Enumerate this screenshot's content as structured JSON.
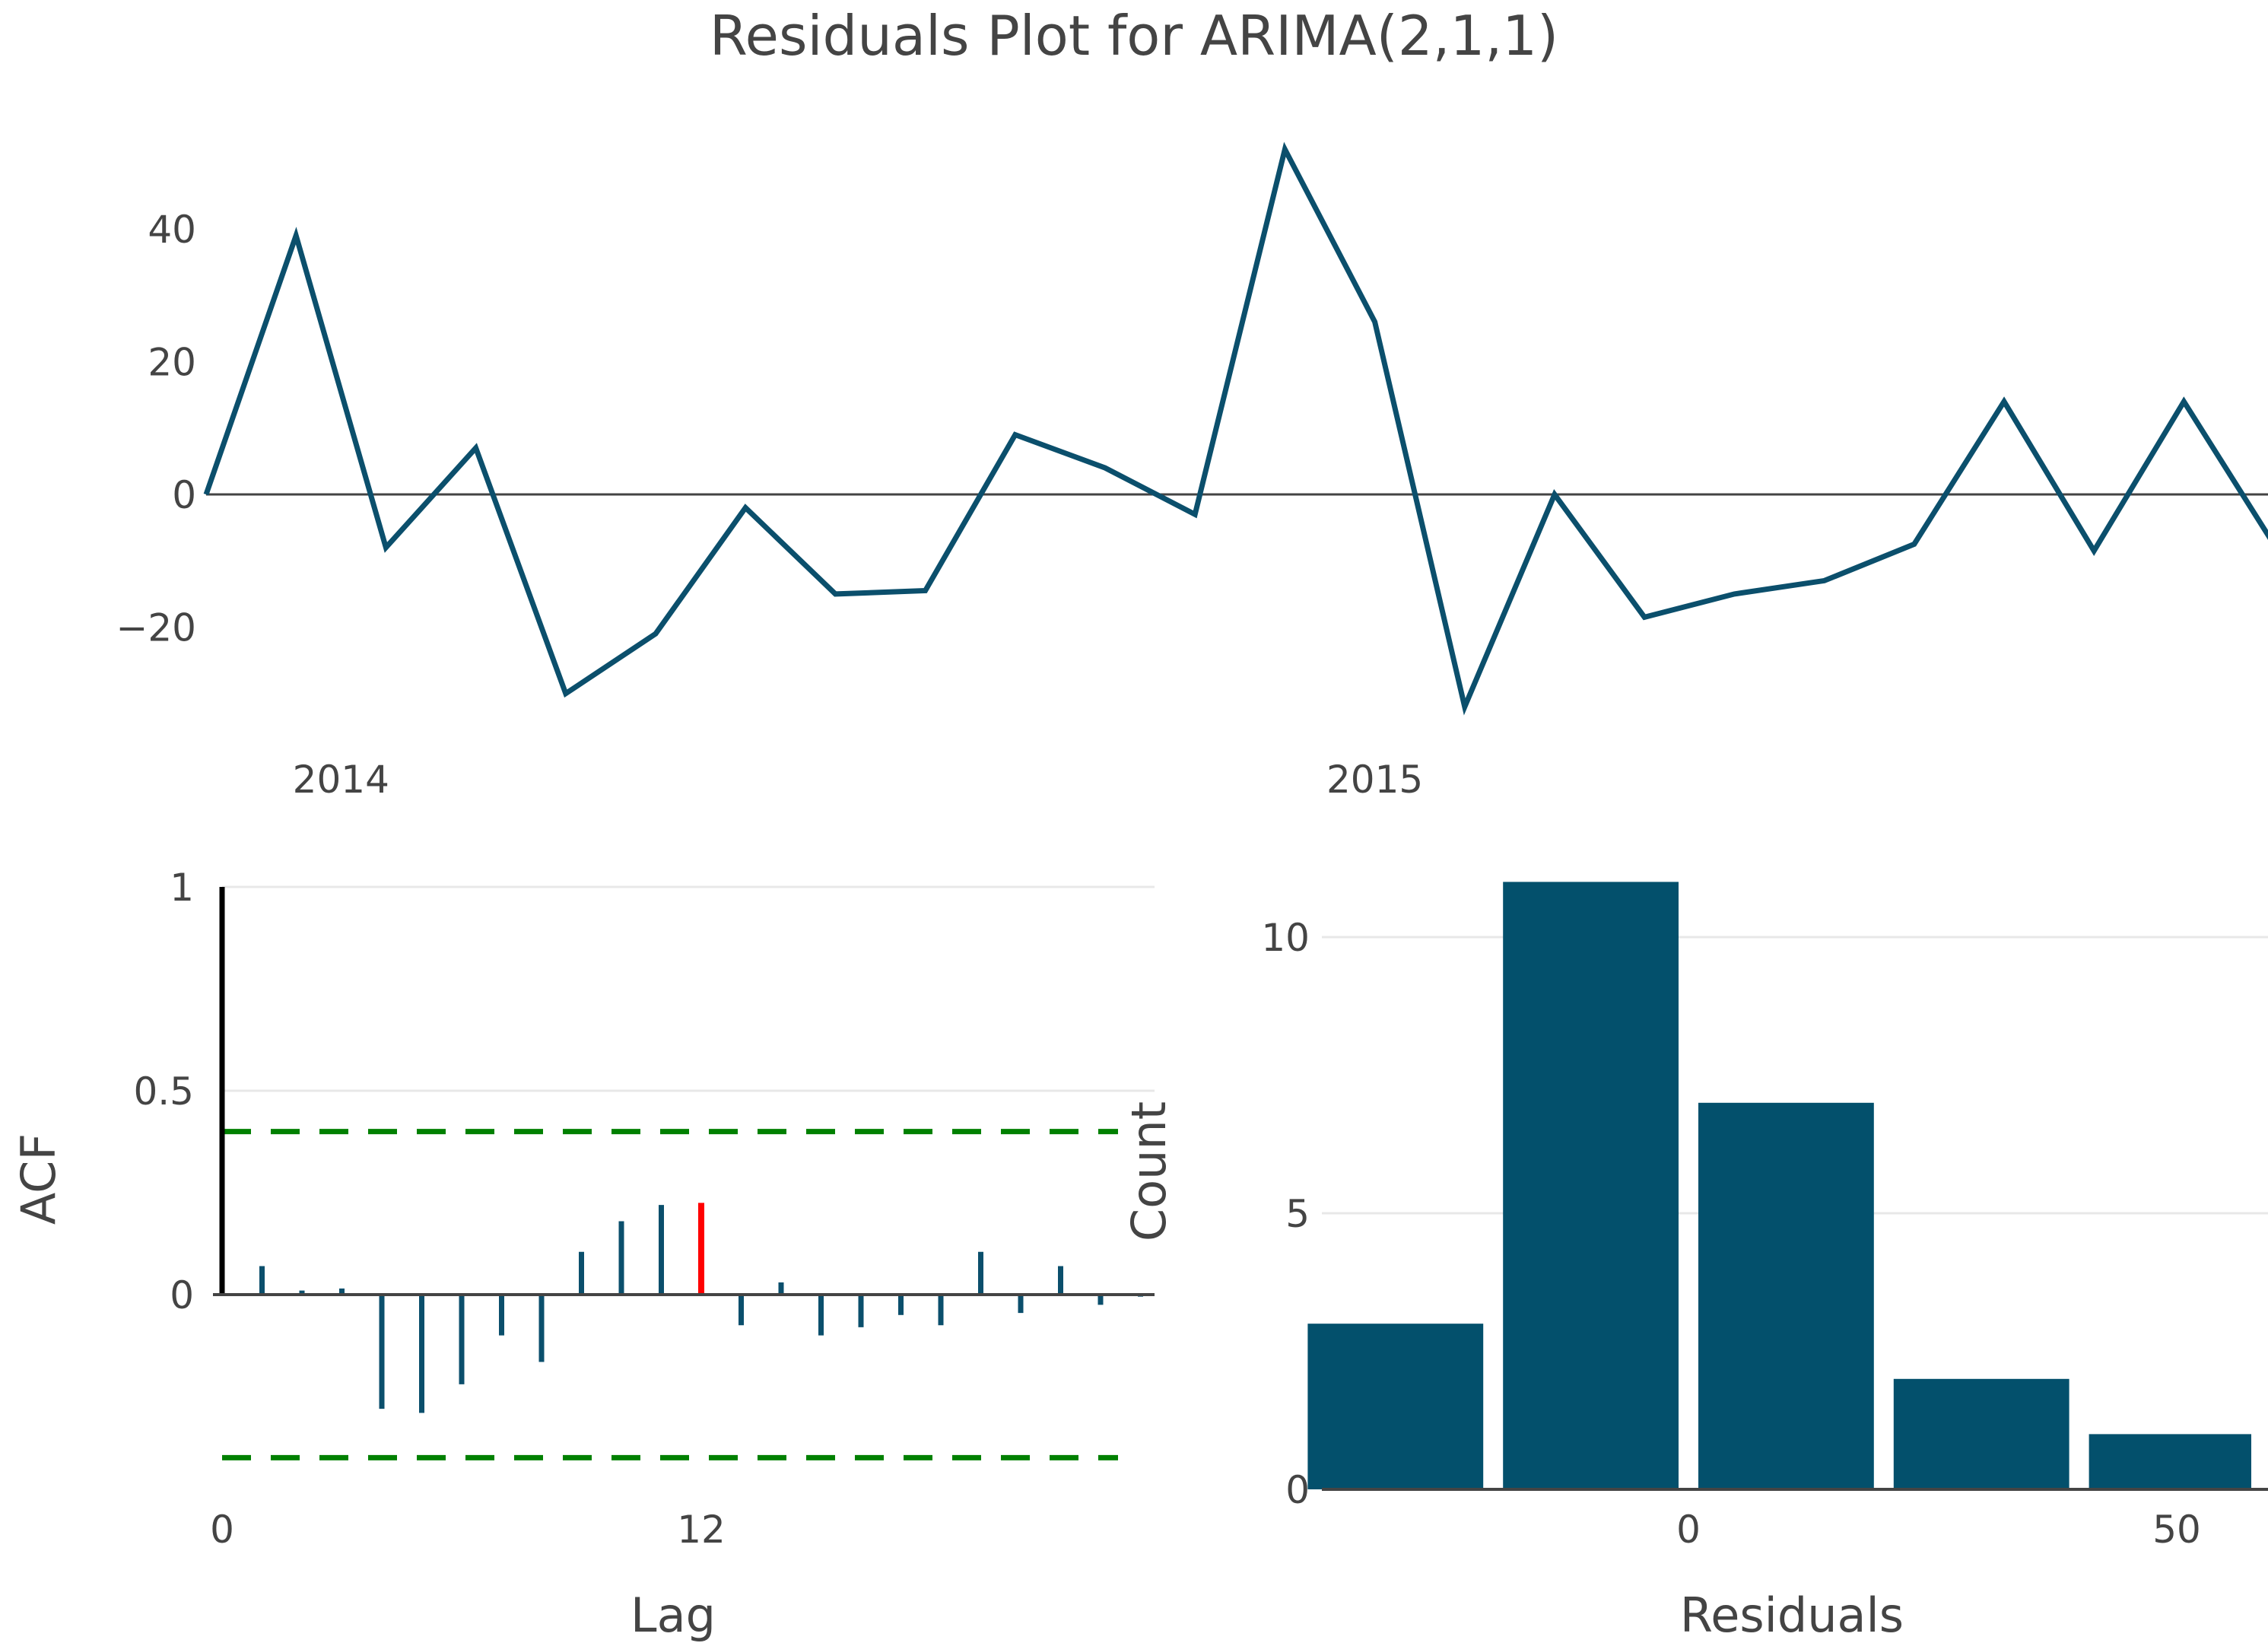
{
  "title": "Residuals Plot for ARIMA(2,1,1)",
  "colors": {
    "series": "#0b4f6c",
    "bar": "#03506c",
    "highlight": "#ff0000",
    "lag0": "#000000",
    "confidence": "#008000",
    "grid": "#e8e8e8",
    "zero": "#444444"
  },
  "chart_data": [
    {
      "id": "residuals",
      "type": "line",
      "title": "Residuals Plot for ARIMA(2,1,1)",
      "xlabel": "",
      "ylabel": "",
      "x_ticks": [
        "2014",
        "2015"
      ],
      "x_tick_positions": [
        1.5,
        13.0
      ],
      "x_range": [
        -0.5,
        23.7
      ],
      "ylim": [
        -35,
        55
      ],
      "y_ticks": [
        40,
        20,
        0,
        -20
      ],
      "y_tick_labels": [
        "40",
        "20",
        "0",
        "−20"
      ],
      "values": [
        0,
        39,
        -8,
        7,
        -30,
        -21,
        -2,
        -15,
        -14.5,
        9,
        4,
        -3,
        52,
        26,
        -32,
        0,
        -18.5,
        -15,
        -13,
        -7.5,
        14,
        -8.5,
        14,
        -7.5
      ],
      "zero_line": true
    },
    {
      "id": "acf",
      "type": "bar",
      "subtype": "stem",
      "xlabel": "Lag",
      "ylabel": "ACF",
      "x_ticks": [
        0,
        12
      ],
      "x_tick_labels": [
        "0",
        "12"
      ],
      "xlim": [
        0,
        23.3
      ],
      "ylim": [
        -0.48,
        1.0
      ],
      "y_ticks": [
        1,
        0.5,
        0
      ],
      "y_tick_labels": [
        "1",
        "0.5",
        "0"
      ],
      "lags": [
        0,
        1,
        2,
        3,
        4,
        5,
        6,
        7,
        8,
        9,
        10,
        11,
        12,
        13,
        14,
        15,
        16,
        17,
        18,
        19,
        20,
        21,
        22,
        23
      ],
      "values": [
        1.0,
        0.07,
        0.01,
        0.015,
        -0.28,
        -0.29,
        -0.22,
        -0.1,
        -0.165,
        0.105,
        0.18,
        0.22,
        0.225,
        -0.075,
        0.03,
        -0.1,
        -0.08,
        -0.05,
        -0.075,
        0.105,
        -0.045,
        0.07,
        -0.025,
        -0.005
      ],
      "highlight_lag": 12,
      "confidence": [
        0.4,
        -0.4
      ]
    },
    {
      "id": "histogram",
      "type": "bar",
      "xlabel": "Residuals",
      "ylabel": "Count",
      "x_ticks": [
        0,
        50
      ],
      "x_tick_labels": [
        "0",
        "50"
      ],
      "xlim": [
        -40,
        58
      ],
      "ylim": [
        0,
        11
      ],
      "y_ticks": [
        10,
        5,
        0
      ],
      "y_tick_labels": [
        "10",
        "5",
        "0"
      ],
      "bins": [
        [
          -40,
          -20
        ],
        [
          -20,
          0
        ],
        [
          0,
          20
        ],
        [
          20,
          40
        ],
        [
          40,
          60
        ]
      ],
      "values": [
        3,
        11,
        7,
        2,
        1
      ]
    }
  ]
}
